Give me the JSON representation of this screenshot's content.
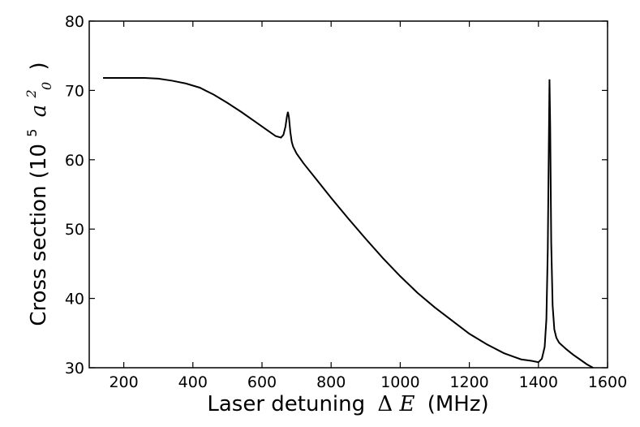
{
  "chart_data": {
    "type": "line",
    "title": "",
    "xlabel": {
      "text": "Laser detuning",
      "delta": "Δ",
      "var": "E",
      "unit": "(MHz)"
    },
    "ylabel": {
      "text": "Cross section (10",
      "exp": "5",
      "var": "a",
      "sub": "0",
      "sup": "2",
      "close": ")"
    },
    "xlim": [
      100,
      1600
    ],
    "ylim": [
      30,
      80
    ],
    "xticks": [
      200,
      400,
      600,
      800,
      1000,
      1200,
      1400,
      1600
    ],
    "yticks": [
      30,
      40,
      50,
      60,
      70,
      80
    ],
    "grid": false,
    "series": [
      {
        "color": "#000000",
        "x": [
          140,
          200,
          260,
          300,
          340,
          380,
          420,
          460,
          500,
          540,
          580,
          620,
          640,
          655,
          662,
          668,
          672,
          675,
          678,
          682,
          686,
          690,
          700,
          720,
          760,
          800,
          850,
          900,
          950,
          1000,
          1050,
          1100,
          1150,
          1200,
          1250,
          1300,
          1350,
          1380,
          1400,
          1410,
          1418,
          1423,
          1427,
          1430,
          1432,
          1434,
          1437,
          1441,
          1446,
          1452,
          1460,
          1480,
          1500,
          1520,
          1540,
          1558
        ],
        "y": [
          71.8,
          71.8,
          71.8,
          71.7,
          71.4,
          71.0,
          70.4,
          69.4,
          68.2,
          66.9,
          65.5,
          64.1,
          63.4,
          63.2,
          63.6,
          64.8,
          66.2,
          66.9,
          66.1,
          64.0,
          62.6,
          61.9,
          60.9,
          59.5,
          57.0,
          54.5,
          51.5,
          48.6,
          45.8,
          43.2,
          40.8,
          38.7,
          36.8,
          34.9,
          33.4,
          32.1,
          31.2,
          31.0,
          30.8,
          31.3,
          33.0,
          37.0,
          47.0,
          62.0,
          71.6,
          65.0,
          48.0,
          39.0,
          35.5,
          34.3,
          33.6,
          32.7,
          31.9,
          31.2,
          30.5,
          29.9
        ]
      }
    ]
  }
}
